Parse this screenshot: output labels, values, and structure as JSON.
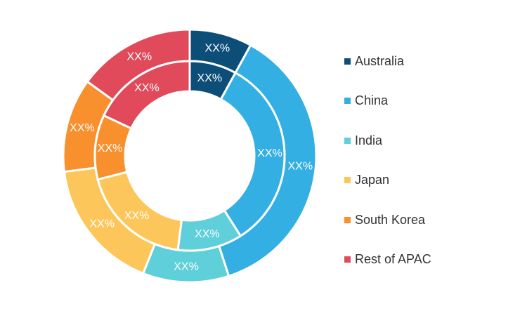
{
  "chart_data": {
    "type": "pie",
    "subtype": "nested-donut",
    "categories": [
      "Australia",
      "China",
      "India",
      "Japan",
      "South Korea",
      "Rest of APAC"
    ],
    "colors": [
      "#0d4e79",
      "#34afe3",
      "#5fcfd9",
      "#fdc65a",
      "#f7902d",
      "#e04a5a"
    ],
    "series": [
      {
        "ring": "outer",
        "values": [
          8,
          37,
          11,
          17,
          12,
          15
        ],
        "labels": [
          "XX%",
          "XX%",
          "XX%",
          "XX%",
          "XX%",
          "XX%"
        ]
      },
      {
        "ring": "inner",
        "values": [
          8,
          33,
          11,
          19,
          11,
          18
        ],
        "labels": [
          "XX%",
          "XX%",
          "XX%",
          "XX%",
          "XX%",
          "XX%"
        ]
      }
    ],
    "legend": {
      "placement": "right",
      "entries": [
        "Australia",
        "China",
        "India",
        "Japan",
        "South Korea",
        "Rest of APAC"
      ]
    }
  }
}
